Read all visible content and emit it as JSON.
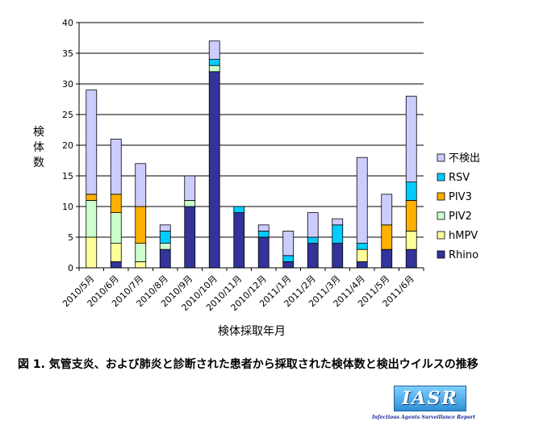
{
  "chart_data": {
    "type": "bar",
    "stacked": true,
    "title": "",
    "xlabel": "検体採取年月",
    "ylabel": "検体数",
    "ylim": [
      0,
      40
    ],
    "yticks": [
      0,
      5,
      10,
      15,
      20,
      25,
      30,
      35,
      40
    ],
    "grid": true,
    "legend_position": "right",
    "categories": [
      "2010/5月",
      "2010/6月",
      "2010/7月",
      "2010/8月",
      "2010/9月",
      "2010/10月",
      "2010/11月",
      "2010/12月",
      "2011/1月",
      "2011/2月",
      "2011/3月",
      "2011/4月",
      "2011/5月",
      "2011/6月"
    ],
    "series": [
      {
        "name": "Rhino",
        "color": "#333399",
        "values": [
          0,
          1,
          0,
          3,
          10,
          32,
          9,
          5,
          1,
          4,
          4,
          1,
          3,
          3
        ]
      },
      {
        "name": "hMPV",
        "color": "#ffff99",
        "values": [
          5,
          3,
          1,
          0,
          0,
          0,
          0,
          0,
          0,
          0,
          0,
          2,
          0,
          3
        ]
      },
      {
        "name": "PIV2",
        "color": "#ccffcc",
        "values": [
          6,
          5,
          3,
          1,
          1,
          1,
          0,
          0,
          0,
          0,
          0,
          0,
          0,
          0
        ]
      },
      {
        "name": "PIV3",
        "color": "#ffb000",
        "values": [
          1,
          3,
          6,
          0,
          0,
          0,
          0,
          0,
          0,
          0,
          0,
          0,
          4,
          5
        ]
      },
      {
        "name": "RSV",
        "color": "#00ccff",
        "values": [
          0,
          0,
          0,
          2,
          0,
          1,
          1,
          1,
          1,
          1,
          3,
          1,
          0,
          3
        ]
      },
      {
        "name": "不検出",
        "color": "#ccccff",
        "values": [
          17,
          9,
          7,
          1,
          4,
          3,
          0,
          1,
          4,
          4,
          1,
          14,
          5,
          14
        ]
      }
    ]
  },
  "caption": "図 1. 気管支炎、および肺炎と診断された患者から採取された検体数と検出ウイルスの推移",
  "logo": {
    "text": "IASR",
    "subtitle": "Infectious Agents Surveillance Report"
  }
}
